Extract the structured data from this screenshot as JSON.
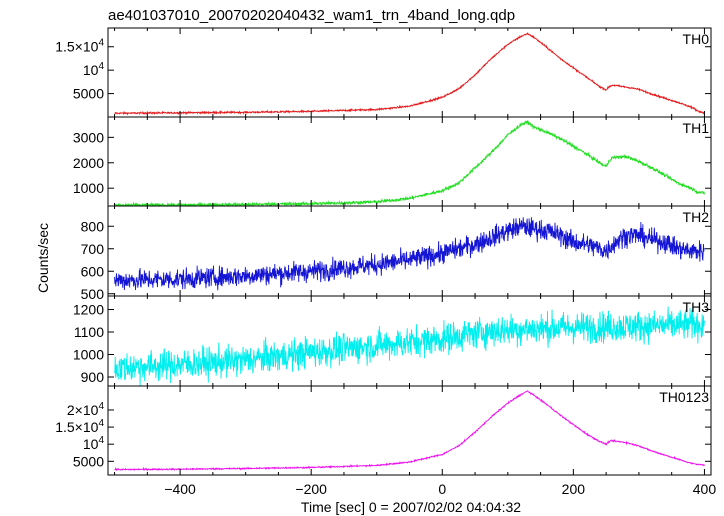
{
  "chart_data": {
    "type": "line",
    "title": "ae401037010_20070202040432_wam1_trn_4band_long.qdp",
    "xlabel": "Time [sec] 0 = 2007/02/02 04:04:32",
    "ylabel": "Counts/sec",
    "xlim": [
      -510,
      410
    ],
    "x_ticks": [
      -400,
      -200,
      0,
      200,
      400
    ],
    "x_tick_labels": [
      "−400",
      "−200",
      "0",
      "200",
      "400"
    ],
    "panels": [
      {
        "name": "TH0",
        "color": "#e41a1c",
        "ylim": [
          0,
          19000
        ],
        "y_ticks": [
          5000,
          10000,
          15000
        ],
        "y_tick_labels": [
          {
            "mantissa": "5000",
            "power": ""
          },
          {
            "mantissa": "10",
            "power": "4"
          },
          {
            "mantissa": "1.5×10",
            "power": "4"
          }
        ],
        "noise": 120,
        "x": [
          -500,
          -400,
          -300,
          -200,
          -100,
          -50,
          0,
          25,
          50,
          75,
          100,
          120,
          130,
          140,
          160,
          180,
          200,
          220,
          240,
          250,
          255,
          260,
          280,
          300,
          320,
          340,
          360,
          380,
          390,
          400
        ],
        "y": [
          800,
          900,
          1000,
          1200,
          1600,
          2300,
          4200,
          6000,
          9000,
          12500,
          15500,
          17200,
          17800,
          17000,
          14800,
          12500,
          10500,
          8500,
          6500,
          5800,
          6500,
          6800,
          6400,
          5900,
          4900,
          4000,
          3100,
          2100,
          1300,
          800
        ]
      },
      {
        "name": "TH1",
        "color": "#22dd22",
        "ylim": [
          300,
          3800
        ],
        "y_ticks": [
          1000,
          2000,
          3000
        ],
        "y_tick_labels": [
          {
            "mantissa": "1000",
            "power": ""
          },
          {
            "mantissa": "2000",
            "power": ""
          },
          {
            "mantissa": "3000",
            "power": ""
          }
        ],
        "noise": 45,
        "x": [
          -500,
          -400,
          -300,
          -200,
          -100,
          -50,
          0,
          25,
          50,
          75,
          100,
          120,
          130,
          140,
          160,
          180,
          200,
          220,
          240,
          250,
          255,
          260,
          280,
          300,
          320,
          340,
          360,
          380,
          390,
          400
        ],
        "y": [
          330,
          340,
          360,
          390,
          460,
          600,
          900,
          1200,
          1800,
          2400,
          3100,
          3500,
          3600,
          3400,
          3200,
          2950,
          2650,
          2350,
          2000,
          1850,
          2100,
          2200,
          2250,
          2050,
          1800,
          1500,
          1200,
          1000,
          850,
          800
        ]
      },
      {
        "name": "TH2",
        "color": "#1515d4",
        "ylim": [
          490,
          890
        ],
        "y_ticks": [
          500,
          600,
          700,
          800
        ],
        "y_tick_labels": [
          {
            "mantissa": "500",
            "power": ""
          },
          {
            "mantissa": "600",
            "power": ""
          },
          {
            "mantissa": "700",
            "power": ""
          },
          {
            "mantissa": "800",
            "power": ""
          }
        ],
        "noise": 32,
        "x": [
          -500,
          -400,
          -300,
          -200,
          -100,
          -50,
          0,
          50,
          100,
          120,
          140,
          160,
          180,
          200,
          220,
          240,
          250,
          260,
          280,
          300,
          320,
          340,
          360,
          380,
          400
        ],
        "y": [
          560,
          565,
          580,
          600,
          630,
          650,
          680,
          720,
          780,
          800,
          790,
          780,
          760,
          730,
          720,
          700,
          690,
          720,
          760,
          760,
          740,
          730,
          700,
          690,
          690
        ]
      },
      {
        "name": "TH3",
        "color": "#00eeee",
        "ylim": [
          860,
          1260
        ],
        "y_ticks": [
          900,
          1000,
          1100,
          1200
        ],
        "y_tick_labels": [
          {
            "mantissa": "900",
            "power": ""
          },
          {
            "mantissa": "1000",
            "power": ""
          },
          {
            "mantissa": "1100",
            "power": ""
          },
          {
            "mantissa": "1200",
            "power": ""
          }
        ],
        "noise": 48,
        "x": [
          -500,
          -400,
          -300,
          -200,
          -100,
          0,
          50,
          100,
          200,
          300,
          400
        ],
        "y": [
          940,
          955,
          975,
          1010,
          1040,
          1070,
          1095,
          1110,
          1120,
          1125,
          1135
        ]
      },
      {
        "name": "TH0123",
        "color": "#ee11ee",
        "ylim": [
          1000,
          27000
        ],
        "y_ticks": [
          5000,
          10000,
          15000,
          20000
        ],
        "y_tick_labels": [
          {
            "mantissa": "5000",
            "power": ""
          },
          {
            "mantissa": "10",
            "power": "4"
          },
          {
            "mantissa": "1.5×10",
            "power": "4"
          },
          {
            "mantissa": "2×10",
            "power": "4"
          }
        ],
        "noise": 140,
        "x": [
          -500,
          -400,
          -300,
          -200,
          -100,
          -50,
          0,
          25,
          50,
          75,
          100,
          120,
          130,
          140,
          160,
          180,
          200,
          220,
          240,
          250,
          255,
          260,
          280,
          300,
          320,
          340,
          360,
          380,
          390,
          400
        ],
        "y": [
          2600,
          2700,
          2900,
          3200,
          3800,
          4800,
          7000,
          9500,
          13500,
          18000,
          22000,
          24500,
          25500,
          24300,
          21500,
          18500,
          15700,
          13000,
          10800,
          10000,
          10800,
          11000,
          10500,
          9500,
          8000,
          6800,
          5600,
          4400,
          4100,
          3900
        ]
      }
    ]
  }
}
